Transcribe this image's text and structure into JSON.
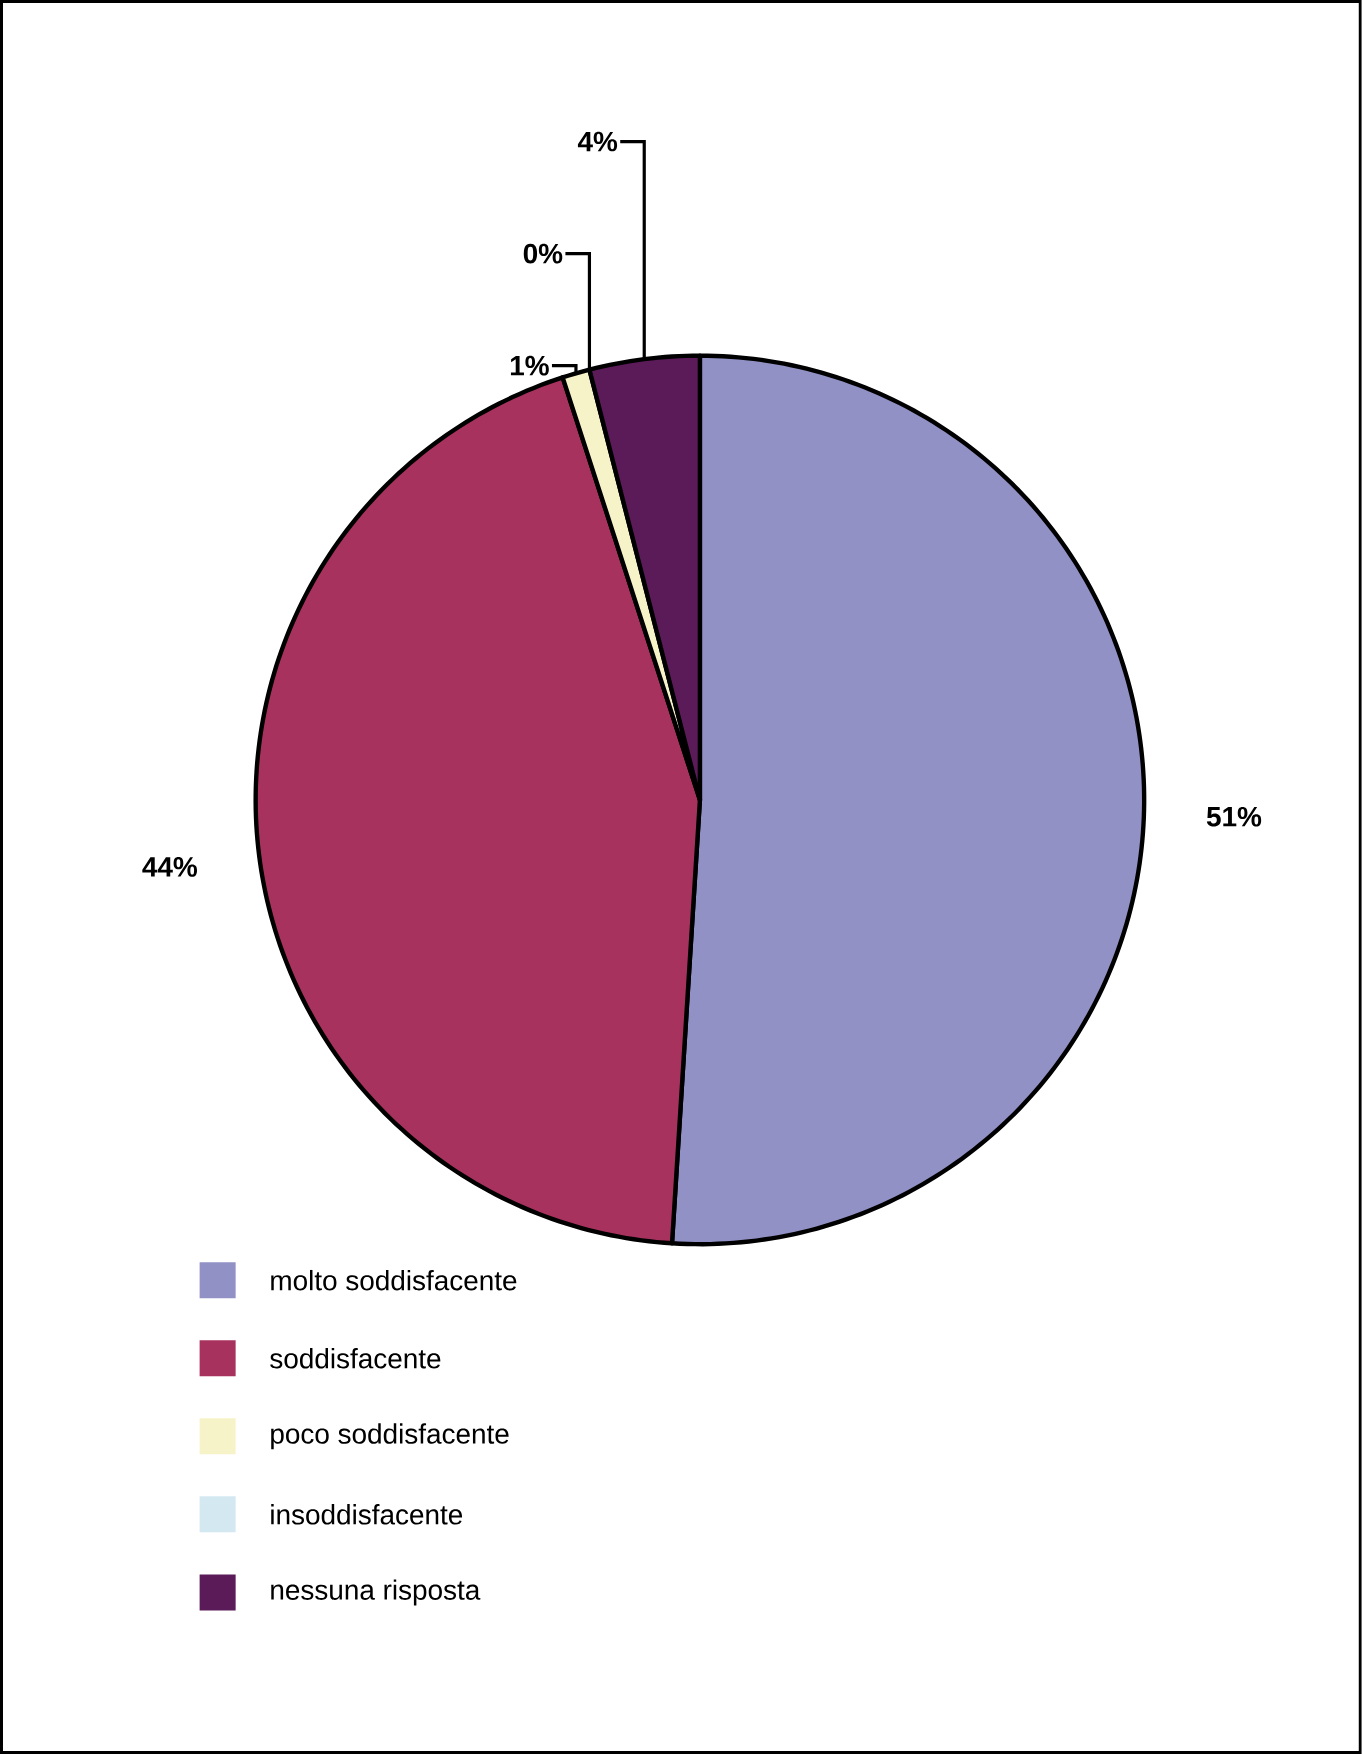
{
  "chart_data": {
    "type": "pie",
    "categories": [
      "molto soddisfacente",
      "soddisfacente",
      "poco soddisfacente",
      "insoddisfacente",
      "nessuna risposta"
    ],
    "values": [
      51,
      44,
      1,
      0,
      4
    ],
    "colors": [
      "#9191c6",
      "#a8325e",
      "#f7f3c9",
      "#d3e8f0",
      "#5a1b58"
    ],
    "value_labels": [
      "51%",
      "44%",
      "1%",
      "0%",
      "4%"
    ],
    "legend": "bottom left"
  }
}
